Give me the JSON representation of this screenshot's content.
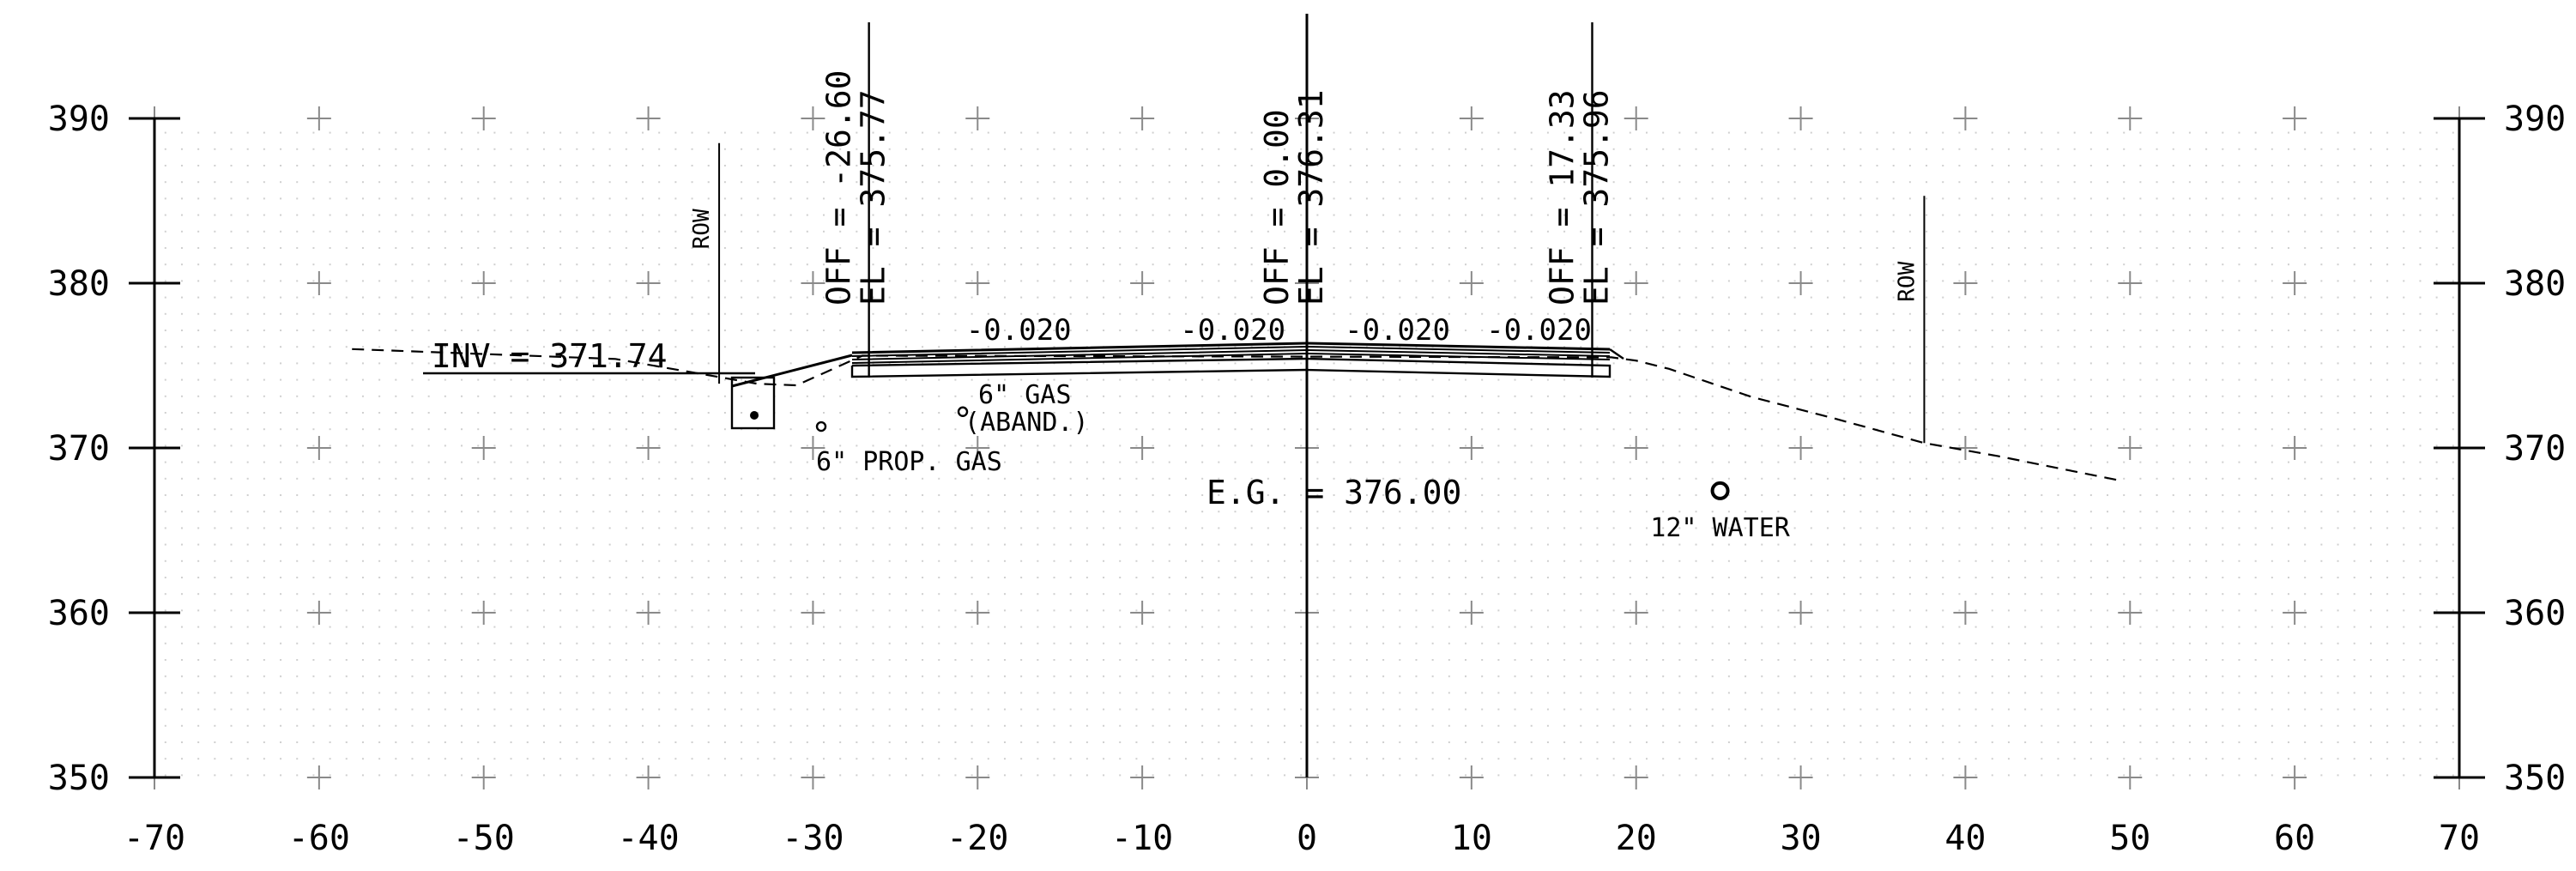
{
  "chart_data": {
    "type": "cross-section",
    "x_range": [
      -70,
      70
    ],
    "y_range": [
      350,
      390
    ],
    "x_ticks": [
      "-70",
      "-60",
      "-50",
      "-40",
      "-30",
      "-20",
      "-10",
      "0",
      "10",
      "20",
      "30",
      "40",
      "50",
      "60",
      "70"
    ],
    "y_ticks": [
      "390",
      "380",
      "370",
      "360",
      "350"
    ],
    "grid": "dotted minor grid with + markers at major intersections",
    "existing_ground": [
      [
        -58,
        376
      ],
      [
        -42,
        375.4
      ],
      [
        -33.4,
        373.9
      ],
      [
        -31,
        373.8
      ],
      [
        -27,
        375.6
      ],
      [
        18.5,
        375.5
      ],
      [
        20,
        375.3
      ],
      [
        22,
        374.8
      ],
      [
        27,
        373.1
      ],
      [
        32,
        371.8
      ],
      [
        37.5,
        370.3
      ],
      [
        42,
        369.5
      ],
      [
        49.5,
        368
      ]
    ],
    "roadway_top": [
      [
        -26.6,
        375.77
      ],
      [
        0,
        376.31
      ],
      [
        17.33,
        375.96
      ]
    ],
    "right_of_way": [
      {
        "label": "ROW",
        "x": -35.7,
        "y_top": 388.5,
        "y_bottom": 373.9
      },
      {
        "label": "ROW",
        "x": 37.5,
        "y_top": 385.3,
        "y_bottom": 370.3
      }
    ],
    "control_points": [
      {
        "off_label": "OFF = -26.60",
        "el_label": "EL = 375.77",
        "offset": -26.6,
        "elevation": 375.77
      },
      {
        "off_label": "OFF = 0.00",
        "el_label": "EL = 376.31",
        "offset": 0.0,
        "elevation": 376.31
      },
      {
        "off_label": "OFF = 17.33",
        "el_label": "EL = 375.96",
        "offset": 17.33,
        "elevation": 375.96
      }
    ],
    "slopes": [
      {
        "label": "-0.020",
        "x": -17.5
      },
      {
        "label": "-0.020",
        "x": -4.5
      },
      {
        "label": "-0.020",
        "x": 5.5
      },
      {
        "label": "-0.020",
        "x": 14.1
      }
    ],
    "inv_label": "INV = 371.74",
    "eg_label": "E.G. = 376.00",
    "utilities": [
      {
        "label": "6\" GAS",
        "label2": "(ABAND.)",
        "x": -20.9,
        "y": 372.2
      },
      {
        "label": "6\" PROP. GAS",
        "x": -29.5,
        "y": 371.3
      },
      {
        "label": "12\" WATER",
        "x": 25.1,
        "y": 367.4
      }
    ]
  }
}
